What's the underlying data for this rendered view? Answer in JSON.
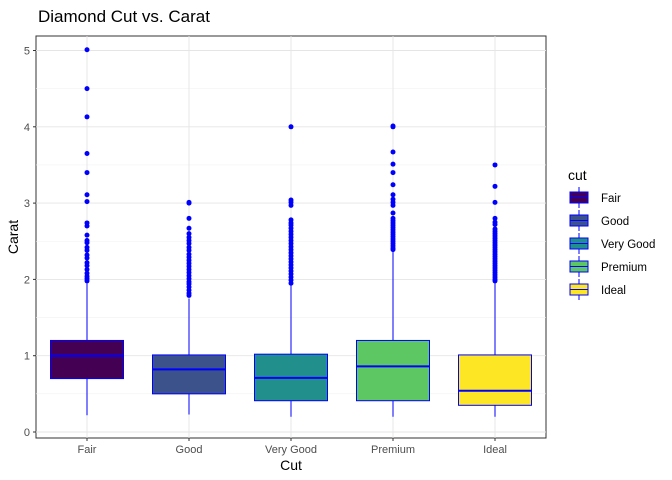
{
  "chart_data": {
    "type": "boxplot",
    "title": "Diamond Cut vs. Carat",
    "xlabel": "Cut",
    "ylabel": "Carat",
    "ylim": [
      0,
      5.01
    ],
    "yticks": [
      0,
      1,
      2,
      3,
      4,
      5
    ],
    "grid": true,
    "legend": {
      "title": "cut",
      "position": "right"
    },
    "accent_color": "#0000ff",
    "categories": [
      "Fair",
      "Good",
      "Very Good",
      "Premium",
      "Ideal"
    ],
    "colors": [
      "#440154",
      "#3b528b",
      "#21908c",
      "#5dc863",
      "#fde725"
    ],
    "series": [
      {
        "name": "Fair",
        "min": 0.22,
        "q1": 0.7,
        "median": 1.0,
        "q3": 1.2,
        "max": 1.95,
        "outliers": [
          5.01,
          4.5,
          4.13,
          3.65,
          3.4,
          3.11,
          3.02,
          2.74,
          2.7,
          2.58,
          2.51,
          2.48,
          2.42,
          2.38,
          2.32,
          2.28,
          2.22,
          2.18,
          2.13,
          2.08,
          2.04,
          2.01,
          1.98
        ]
      },
      {
        "name": "Good",
        "min": 0.23,
        "q1": 0.5,
        "median": 0.82,
        "q3": 1.01,
        "max": 1.75,
        "outliers": [
          3.01,
          3.0,
          2.8,
          2.67,
          2.6,
          2.55,
          2.51,
          2.47,
          2.42,
          2.38,
          2.33,
          2.29,
          2.25,
          2.21,
          2.17,
          2.13,
          2.09,
          2.05,
          2.01,
          1.97,
          1.94,
          1.9,
          1.86,
          1.82,
          1.79
        ]
      },
      {
        "name": "Very Good",
        "min": 0.2,
        "q1": 0.41,
        "median": 0.71,
        "q3": 1.02,
        "max": 1.93,
        "outliers": [
          4.0,
          3.04,
          3.01,
          2.97,
          2.78,
          2.74,
          2.71,
          2.67,
          2.63,
          2.59,
          2.55,
          2.51,
          2.47,
          2.43,
          2.39,
          2.35,
          2.31,
          2.27,
          2.23,
          2.19,
          2.15,
          2.11,
          2.07,
          2.03,
          1.99,
          1.95
        ]
      },
      {
        "name": "Premium",
        "min": 0.2,
        "q1": 0.41,
        "median": 0.86,
        "q3": 1.2,
        "max": 2.37,
        "outliers": [
          4.01,
          4.0,
          3.67,
          3.51,
          3.4,
          3.24,
          3.11,
          3.05,
          3.01,
          2.97,
          2.87,
          2.8,
          2.77,
          2.74,
          2.71,
          2.68,
          2.65,
          2.62,
          2.59,
          2.56,
          2.53,
          2.5,
          2.47,
          2.44,
          2.41,
          2.39
        ]
      },
      {
        "name": "Ideal",
        "min": 0.2,
        "q1": 0.35,
        "median": 0.54,
        "q3": 1.01,
        "max": 1.96,
        "outliers": [
          3.5,
          3.22,
          3.01,
          2.8,
          2.75,
          2.72,
          2.66,
          2.63,
          2.6,
          2.57,
          2.54,
          2.51,
          2.48,
          2.45,
          2.42,
          2.39,
          2.36,
          2.33,
          2.3,
          2.27,
          2.24,
          2.21,
          2.18,
          2.15,
          2.12,
          2.09,
          2.06,
          2.03,
          2.0,
          1.98
        ]
      }
    ]
  }
}
